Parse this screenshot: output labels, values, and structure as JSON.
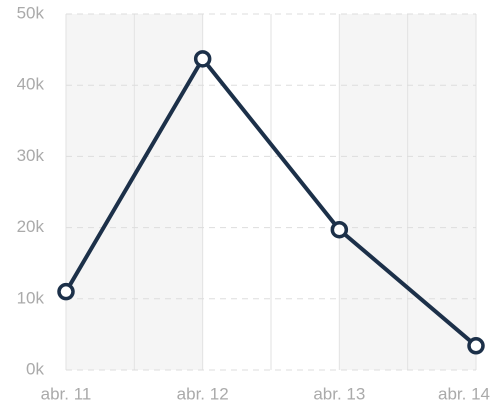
{
  "chart_data": {
    "type": "line",
    "categories": [
      "abr. 11",
      "abr. 12",
      "abr. 13",
      "abr. 14"
    ],
    "values": [
      11000,
      43700,
      19700,
      3400
    ],
    "color": "#1c3049",
    "ylim": [
      0,
      50000
    ],
    "yticks": [
      {
        "value": 0,
        "label": "0k"
      },
      {
        "value": 10000,
        "label": "10k"
      },
      {
        "value": 20000,
        "label": "20k"
      },
      {
        "value": 30000,
        "label": "30k"
      },
      {
        "value": 40000,
        "label": "40k"
      },
      {
        "value": 50000,
        "label": "50k"
      }
    ],
    "grid": true
  }
}
